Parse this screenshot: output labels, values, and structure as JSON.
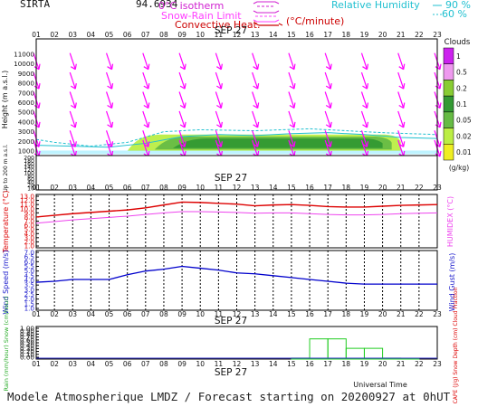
{
  "header": {
    "station": "SIRTA",
    "coord": "94.6934",
    "legend_left": [
      {
        "label": "0°C isotherm",
        "color": "#d020d0",
        "style": "dash"
      },
      {
        "label": "Snow-Rain Limit",
        "color": "#ff40ff",
        "style": "dash"
      },
      {
        "label": "Convective Heat.",
        "color": "#cc0000",
        "style": "solid"
      }
    ],
    "legend_unit": "(°C/minute)",
    "legend_right": [
      {
        "label": "Relative Humidity",
        "value": "90 %",
        "color": "#20c0d0"
      },
      {
        "label": "",
        "value": "60 %",
        "color": "#20c0d0"
      }
    ]
  },
  "date_label": "SEP 27",
  "universal_time": "Universal Time",
  "footer": "Modele Atmospherique LMDZ / Forecast starting on 20200927 at 0hUT",
  "colors": {
    "wind_arrow": "#ff00ff",
    "temperature": "#dd0000",
    "humidex": "#ee44ee",
    "wind": "#0000cc",
    "rain": "#22cc22",
    "cape": "#dd0000",
    "axis_red": "#dd0000",
    "axis_blue": "#1a1acc",
    "axis_green": "#22aa22"
  },
  "chart_data": [
    {
      "type": "heatmap",
      "title": "Clouds",
      "ylabel": "Height (m a.s.l.)",
      "ylabel_low": "Up to 200 m a.s.l.",
      "x_ticks": [
        "01",
        "02",
        "03",
        "04",
        "05",
        "06",
        "07",
        "08",
        "09",
        "10",
        "11",
        "12",
        "13",
        "14",
        "15",
        "16",
        "17",
        "18",
        "19",
        "20",
        "21",
        "22",
        "23"
      ],
      "y_ticks_upper": [
        "11000",
        "10000",
        "9000",
        "8000",
        "7000",
        "6000",
        "5000",
        "4000",
        "3000",
        "2000",
        "1000"
      ],
      "y_ticks_lower": [
        "200",
        "180",
        "160",
        "140",
        "120",
        "100",
        "80",
        "60",
        "40",
        "20",
        "10"
      ],
      "colorbar_unit": "(g/kg)",
      "colorbar_levels": [
        {
          "label": "1",
          "color": "#cc22ee"
        },
        {
          "label": "0.5",
          "color": "#ee99ee"
        },
        {
          "label": "0.2",
          "color": "#88cc33"
        },
        {
          "label": "0.1",
          "color": "#339933"
        },
        {
          "label": "0.05",
          "color": "#66bb44"
        },
        {
          "label": "0.02",
          "color": "#bbee44"
        },
        {
          "label": "0.01",
          "color": "#eeee22"
        }
      ],
      "cloud_layers": [
        {
          "start_h": 6.0,
          "end_h": 21.0,
          "base_m": 1000,
          "top_m": 2700,
          "level": "0.02"
        },
        {
          "start_h": 7.5,
          "end_h": 20.5,
          "base_m": 1150,
          "top_m": 2500,
          "level": "0.05"
        },
        {
          "start_h": 8.5,
          "end_h": 20.0,
          "base_m": 1300,
          "top_m": 2300,
          "level": "0.1"
        }
      ],
      "wind_arrows_hours": [
        1,
        3,
        5,
        7,
        9,
        11,
        13,
        15,
        17,
        19,
        21,
        23
      ],
      "wind_arrows_heights_m": [
        10000,
        8000,
        6000,
        4000,
        2000,
        1000
      ]
    },
    {
      "type": "line",
      "title": "",
      "ylabel": "Temperature (°C)",
      "ylabel_right": "HUMIDEX (°C)",
      "y_ticks": [
        "13.0",
        "12.0",
        "11.0",
        "10.0",
        "9.0",
        "8.0",
        "7.0",
        "6.0",
        "5.0",
        "4.0",
        "3.0",
        "2.0",
        "1.0"
      ],
      "ylim": [
        1,
        13
      ],
      "x": [
        1,
        2,
        3,
        4,
        5,
        6,
        7,
        8,
        9,
        10,
        11,
        12,
        13,
        14,
        15,
        16,
        17,
        18,
        19,
        20,
        21,
        22,
        23
      ],
      "series": [
        {
          "name": "Temperature",
          "values": [
            8.0,
            8.4,
            8.8,
            9.1,
            9.4,
            9.7,
            10.2,
            10.9,
            11.6,
            11.5,
            11.3,
            11.1,
            10.7,
            10.9,
            11.0,
            10.8,
            10.5,
            10.4,
            10.4,
            10.6,
            10.8,
            10.9,
            11.0
          ]
        },
        {
          "name": "Humidex",
          "values": [
            6.5,
            6.9,
            7.3,
            7.6,
            7.9,
            8.2,
            8.6,
            9.0,
            9.3,
            9.3,
            9.2,
            9.1,
            8.9,
            9.0,
            9.0,
            8.8,
            8.6,
            8.5,
            8.5,
            8.6,
            8.8,
            8.9,
            9.0
          ]
        }
      ]
    },
    {
      "type": "line",
      "title": "",
      "ylabel": "Wind Speed (m/s)",
      "ylabel_right": "Wind Gust (m/s)",
      "y_ticks": [
        "7.0",
        "6.5",
        "6.0",
        "5.5",
        "5.0",
        "4.5",
        "4.0",
        "3.5",
        "3.0",
        "2.5",
        "2.0",
        "1.5",
        "1.0"
      ],
      "ylim": [
        1,
        7
      ],
      "x": [
        1,
        2,
        3,
        4,
        5,
        6,
        7,
        8,
        9,
        10,
        11,
        12,
        13,
        14,
        15,
        16,
        17,
        18,
        19,
        20,
        21,
        22,
        23
      ],
      "series": [
        {
          "name": "Wind Speed",
          "values": [
            3.8,
            3.9,
            4.1,
            4.1,
            4.1,
            4.6,
            5.0,
            5.2,
            5.5,
            5.3,
            5.1,
            4.8,
            4.7,
            4.5,
            4.3,
            4.1,
            3.9,
            3.7,
            3.6,
            3.6,
            3.6,
            3.6,
            3.6
          ]
        }
      ]
    },
    {
      "type": "bar",
      "title": "",
      "ylabel": "Rain (mm/hour) Snow (cm/hour)",
      "ylabel_right": "CAPE (J/g) Snow Depth (cm) Cloud Fraction",
      "y_ticks": [
        "1.00",
        "0.90",
        "0.80",
        "0.70",
        "0.60",
        "0.50",
        "0.40",
        "0.30",
        "0.20",
        "0.10",
        "0.00"
      ],
      "ylim": [
        0,
        1
      ],
      "x": [
        1,
        2,
        3,
        4,
        5,
        6,
        7,
        8,
        9,
        10,
        11,
        12,
        13,
        14,
        15,
        16,
        17,
        18,
        19,
        20,
        21,
        22,
        23
      ],
      "series": [
        {
          "name": "Rain",
          "values": [
            0,
            0,
            0,
            0,
            0,
            0,
            0,
            0,
            0,
            0,
            0,
            0,
            0,
            0,
            0.03,
            0.62,
            0.62,
            0.33,
            0.33,
            0.03,
            0.01,
            0,
            0
          ]
        }
      ]
    }
  ]
}
